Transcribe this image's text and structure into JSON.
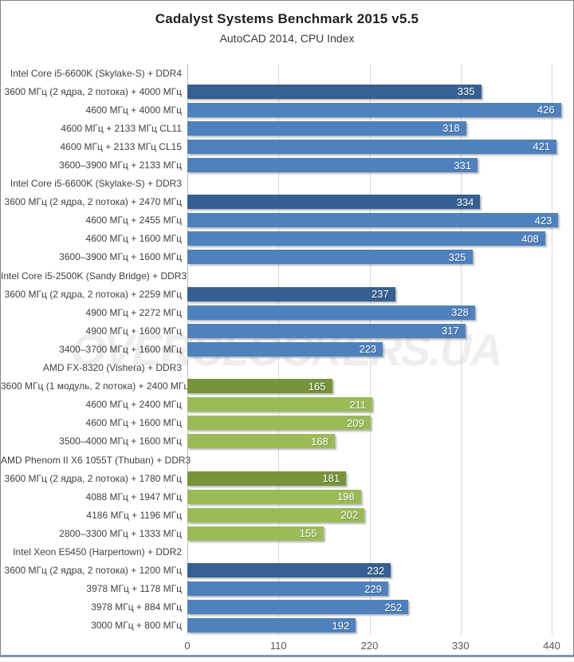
{
  "title": "Cadalyst Systems Benchmark 2015 v5.5",
  "subtitle": "AutoCAD 2014, CPU Index",
  "watermark": "OVERCLOCKERS.UA",
  "colors": {
    "intel_dark": "#366092",
    "intel": "#4F81BD",
    "amd_dark": "#77933C",
    "amd": "#9BBB59",
    "gridline": "#D9D9D9",
    "axis_line": "#BFBFBF"
  },
  "chart_data": {
    "type": "bar",
    "orientation": "horizontal",
    "title": "Cadalyst Systems Benchmark 2015 v5.5",
    "subtitle": "AutoCAD 2014, CPU Index",
    "xlabel": "",
    "ylabel": "",
    "xlim": [
      0,
      440
    ],
    "x_ticks": [
      "0",
      "110",
      "220",
      "330",
      "440"
    ],
    "grid": true,
    "rows": [
      {
        "kind": "group",
        "label": "Intel Core i5-6600K (Skylake-S) + DDR4"
      },
      {
        "kind": "bar",
        "label": "3600 МГц (2 ядра, 2 потока) + 4000 МГц",
        "value": 335,
        "color_key": "intel_dark"
      },
      {
        "kind": "bar",
        "label": "4600 МГц + 4000 МГц",
        "value": 426,
        "color_key": "intel"
      },
      {
        "kind": "bar",
        "label": "4600 МГц + 2133 МГц CL11",
        "value": 318,
        "color_key": "intel"
      },
      {
        "kind": "bar",
        "label": "4600 МГц + 2133 МГц CL15",
        "value": 421,
        "color_key": "intel"
      },
      {
        "kind": "bar",
        "label": "3600–3900 МГц + 2133 МГц",
        "value": 331,
        "color_key": "intel"
      },
      {
        "kind": "group",
        "label": "Intel Core i5-6600K (Skylake-S) + DDR3"
      },
      {
        "kind": "bar",
        "label": "3600 МГц (2 ядра, 2 потока) + 2470 МГц",
        "value": 334,
        "color_key": "intel_dark"
      },
      {
        "kind": "bar",
        "label": "4600 МГц + 2455 МГц",
        "value": 423,
        "color_key": "intel"
      },
      {
        "kind": "bar",
        "label": "4600 МГц + 1600 МГц",
        "value": 408,
        "color_key": "intel"
      },
      {
        "kind": "bar",
        "label": "3600–3900 МГц + 1600 МГц",
        "value": 325,
        "color_key": "intel"
      },
      {
        "kind": "group",
        "label": "Intel Core i5-2500K (Sandy Bridge) + DDR3"
      },
      {
        "kind": "bar",
        "label": "3600 МГц (2 ядра, 2 потока) + 2259 МГц",
        "value": 237,
        "color_key": "intel_dark"
      },
      {
        "kind": "bar",
        "label": "4900 МГц + 2272 МГц",
        "value": 328,
        "color_key": "intel"
      },
      {
        "kind": "bar",
        "label": "4900 МГц + 1600 МГц",
        "value": 317,
        "color_key": "intel"
      },
      {
        "kind": "bar",
        "label": "3400–3700 МГц + 1600 МГц",
        "value": 223,
        "color_key": "intel"
      },
      {
        "kind": "group",
        "label": "AMD FX-8320 (Vishera) + DDR3"
      },
      {
        "kind": "bar",
        "label": "3600 МГц (1 модуль, 2 потока) + 2400 МГц",
        "value": 165,
        "color_key": "amd_dark"
      },
      {
        "kind": "bar",
        "label": "4600 МГц + 2400 МГц",
        "value": 211,
        "color_key": "amd"
      },
      {
        "kind": "bar",
        "label": "4600 МГц + 1600 МГц",
        "value": 209,
        "color_key": "amd"
      },
      {
        "kind": "bar",
        "label": "3500–4000 МГц + 1600 МГц",
        "value": 168,
        "color_key": "amd"
      },
      {
        "kind": "group",
        "label": "AMD Phenom II X6 1055T (Thuban) + DDR3"
      },
      {
        "kind": "bar",
        "label": "3600 МГц (2 ядра, 2 потока) + 1780 МГц",
        "value": 181,
        "color_key": "amd_dark"
      },
      {
        "kind": "bar",
        "label": "4088 МГц + 1947 МГц",
        "value": 198,
        "color_key": "amd"
      },
      {
        "kind": "bar",
        "label": "4186 МГц + 1196 МГц",
        "value": 202,
        "color_key": "amd"
      },
      {
        "kind": "bar",
        "label": "2800–3300 МГц + 1333 МГц",
        "value": 155,
        "color_key": "amd"
      },
      {
        "kind": "group",
        "label": "Intel Xeon E5450 (Harpertown) + DDR2"
      },
      {
        "kind": "bar",
        "label": "3600 МГц (2 ядра, 2 потока) + 1200 МГц",
        "value": 232,
        "color_key": "intel_dark"
      },
      {
        "kind": "bar",
        "label": "3978 МГц + 1178 МГц",
        "value": 229,
        "color_key": "intel"
      },
      {
        "kind": "bar",
        "label": "3978 МГц + 884 МГц",
        "value": 252,
        "color_key": "intel"
      },
      {
        "kind": "bar",
        "label": "3000 МГц + 800 МГц",
        "value": 192,
        "color_key": "intel"
      }
    ]
  }
}
